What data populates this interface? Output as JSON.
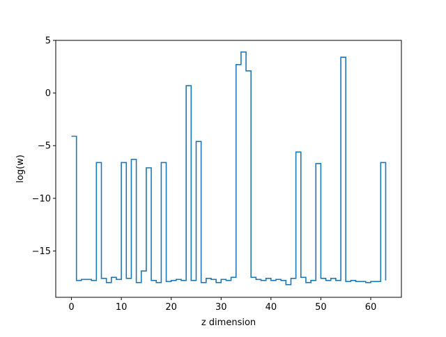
{
  "chart_data": {
    "type": "line",
    "drawstyle": "steps-post",
    "xlabel": "z dimension",
    "ylabel": "log(w)",
    "xlim": [
      -3.15,
      66.15
    ],
    "ylim": [
      -19.4,
      5.0
    ],
    "xticks": [
      0,
      10,
      20,
      30,
      40,
      50,
      60
    ],
    "yticks": [
      5,
      0,
      -5,
      -10,
      -15
    ],
    "ytick_labels": [
      "5",
      "0",
      "−5",
      "−10",
      "−15"
    ],
    "grid": false,
    "color": "#1f77b4",
    "series": [
      {
        "x": [
          0,
          1,
          2,
          3,
          4,
          5,
          6,
          7,
          8,
          9,
          10,
          11,
          12,
          13,
          14,
          15,
          16,
          17,
          18,
          19,
          20,
          21,
          22,
          23,
          24,
          25,
          26,
          27,
          28,
          29,
          30,
          31,
          32,
          33,
          34,
          35,
          36,
          37,
          38,
          39,
          40,
          41,
          42,
          43,
          44,
          45,
          46,
          47,
          48,
          49,
          50,
          51,
          52,
          53,
          54,
          55,
          56,
          57,
          58,
          59,
          60,
          61,
          62,
          63
        ],
        "values": [
          -4.1,
          -17.8,
          -17.7,
          -17.7,
          -17.8,
          -6.6,
          -17.6,
          -18.0,
          -17.5,
          -17.7,
          -6.6,
          -17.6,
          -6.3,
          -18.0,
          -16.9,
          -7.1,
          -17.8,
          -18.0,
          -6.6,
          -17.9,
          -17.8,
          -17.7,
          -17.8,
          0.7,
          -17.8,
          -4.6,
          -18.0,
          -17.6,
          -17.7,
          -18.0,
          -17.7,
          -17.8,
          -17.5,
          2.7,
          3.9,
          2.1,
          -17.5,
          -17.7,
          -17.8,
          -17.6,
          -17.8,
          -17.7,
          -17.8,
          -18.2,
          -17.6,
          -5.6,
          -17.5,
          -18.0,
          -17.8,
          -6.7,
          -17.6,
          -17.8,
          -17.6,
          -17.8,
          3.4,
          -17.9,
          -17.8,
          -17.9,
          -17.9,
          -18.0,
          -17.9,
          -17.9,
          -6.6,
          -17.8
        ]
      }
    ]
  }
}
